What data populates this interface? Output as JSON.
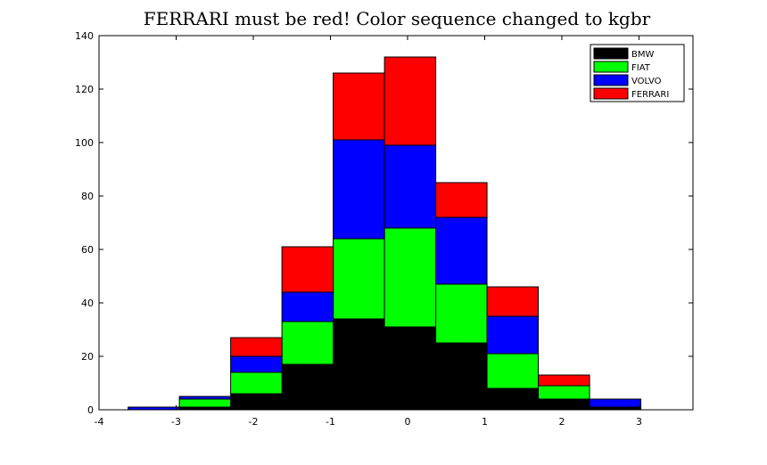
{
  "chart_data": {
    "type": "bar",
    "stacked": true,
    "title": "FERRARI must be red! Color sequence changed to kgbr",
    "xlabel": "",
    "ylabel": "",
    "x_centers": [
      -3.2903,
      -2.6256,
      -1.9609,
      -1.2962,
      -0.6315,
      0.0332,
      0.6979,
      1.3626,
      2.0273,
      2.692
    ],
    "bin_width": 0.6647,
    "xlim": [
      -4,
      3.7
    ],
    "ylim": [
      0,
      140
    ],
    "xticks": [
      -4,
      -3,
      -2,
      -1,
      0,
      1,
      2,
      3
    ],
    "xtick_labels": [
      "-4",
      "-3",
      "-2",
      "-1",
      "0",
      "1",
      "2",
      "3"
    ],
    "yticks": [
      0,
      20,
      40,
      60,
      80,
      100,
      120,
      140
    ],
    "ytick_labels": [
      "0",
      "20",
      "40",
      "60",
      "80",
      "100",
      "120",
      "140"
    ],
    "grid": false,
    "legend_position": "top-right",
    "series": [
      {
        "name": "BMW",
        "color": "#000000",
        "values": [
          0,
          1,
          6,
          17,
          34,
          31,
          25,
          8,
          4,
          1
        ]
      },
      {
        "name": "FIAT",
        "color": "#00ff00",
        "values": [
          0,
          3,
          8,
          16,
          30,
          37,
          22,
          13,
          5,
          0
        ]
      },
      {
        "name": "VOLVO",
        "color": "#0000ff",
        "values": [
          1,
          1,
          6,
          11,
          37,
          31,
          25,
          14,
          0,
          3
        ]
      },
      {
        "name": "FERRARI",
        "color": "#ff0000",
        "values": [
          0,
          0,
          7,
          17,
          25,
          33,
          13,
          11,
          4,
          0
        ]
      }
    ]
  }
}
